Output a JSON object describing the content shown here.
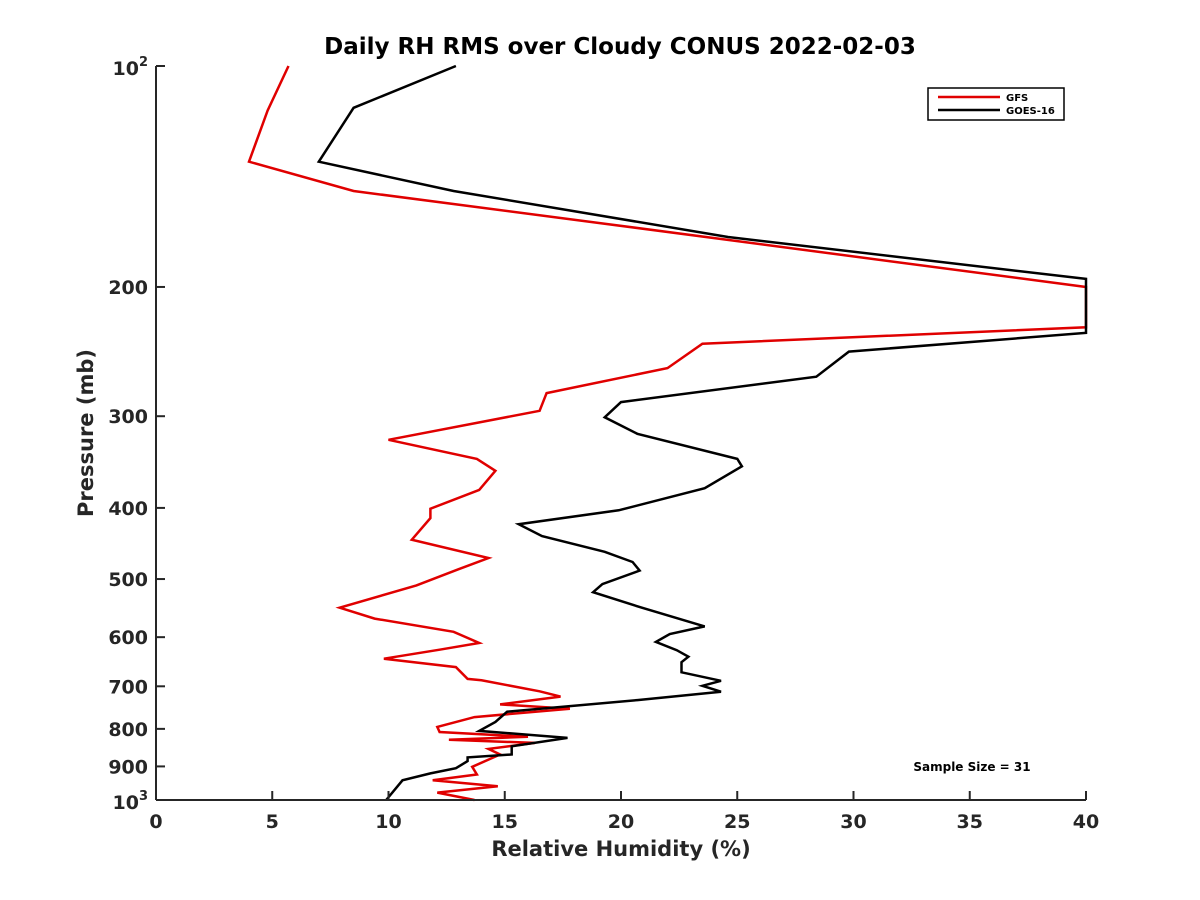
{
  "chart_data": {
    "type": "line",
    "title": "Daily RH RMS over Cloudy CONUS 2022-02-03",
    "xlabel": "Relative Humidity (%)",
    "ylabel": "Pressure (mb)",
    "xlim": [
      0,
      40
    ],
    "ylim": [
      100,
      1000
    ],
    "y_scale": "log",
    "y_reversed": true,
    "x_ticks": [
      "0",
      "5",
      "10",
      "15",
      "20",
      "25",
      "30",
      "35",
      "40"
    ],
    "y_ticks": [
      {
        "value": 100,
        "base": "10",
        "exp": "2"
      },
      {
        "value": 200,
        "label": "200"
      },
      {
        "value": 300,
        "label": "300"
      },
      {
        "value": 400,
        "label": "400"
      },
      {
        "value": 500,
        "label": "500"
      },
      {
        "value": 600,
        "label": "600"
      },
      {
        "value": 700,
        "label": "700"
      },
      {
        "value": 800,
        "label": "800"
      },
      {
        "value": 900,
        "label": "900"
      },
      {
        "value": 1000,
        "base": "10",
        "exp": "3"
      }
    ],
    "legend_position": "top-right",
    "grid": false,
    "annotation": "Sample Size = 31",
    "series": [
      {
        "name": "GFS",
        "color": "#e00000",
        "points": [
          [
            5.7,
            100
          ],
          [
            4.8,
            115
          ],
          [
            4.0,
            135
          ],
          [
            8.5,
            148
          ],
          [
            19.3,
            164
          ],
          [
            40,
            200
          ],
          [
            40,
            227
          ],
          [
            23.5,
            239
          ],
          [
            22,
            258
          ],
          [
            16.8,
            279
          ],
          [
            16.5,
            295
          ],
          [
            10,
            323
          ],
          [
            13.8,
            343
          ],
          [
            14.6,
            356
          ],
          [
            13.9,
            378
          ],
          [
            11.8,
            401
          ],
          [
            11.8,
            413
          ],
          [
            11,
            442
          ],
          [
            14.3,
            468
          ],
          [
            13,
            485
          ],
          [
            11.2,
            510
          ],
          [
            7.9,
            547
          ],
          [
            9.4,
            566
          ],
          [
            12.8,
            590
          ],
          [
            13.9,
            611
          ],
          [
            12.2,
            624
          ],
          [
            9.8,
            642
          ],
          [
            12.9,
            659
          ],
          [
            13.4,
            684
          ],
          [
            14,
            687
          ],
          [
            16.5,
            711
          ],
          [
            17.4,
            723
          ],
          [
            14.8,
            741
          ],
          [
            17.8,
            751
          ],
          [
            13.7,
            771
          ],
          [
            12.1,
            795
          ],
          [
            12.2,
            808
          ],
          [
            16,
            820
          ],
          [
            12.6,
            828
          ],
          [
            16.3,
            836
          ],
          [
            14.3,
            852
          ],
          [
            14.8,
            867
          ],
          [
            13.6,
            901
          ],
          [
            13.8,
            923
          ],
          [
            11.9,
            940
          ],
          [
            14.7,
            958
          ],
          [
            12.1,
            977
          ],
          [
            13.7,
            1000
          ]
        ]
      },
      {
        "name": "GOES-16",
        "color": "#000000",
        "points": [
          [
            12.9,
            100
          ],
          [
            8.5,
            114
          ],
          [
            7,
            135
          ],
          [
            12.8,
            148
          ],
          [
            24.6,
            171
          ],
          [
            40,
            195
          ],
          [
            40,
            231
          ],
          [
            29.8,
            245
          ],
          [
            28.4,
            265
          ],
          [
            20,
            287
          ],
          [
            19.3,
            301
          ],
          [
            20.7,
            317
          ],
          [
            25,
            343
          ],
          [
            25.2,
            351
          ],
          [
            23.6,
            376
          ],
          [
            19.9,
            403
          ],
          [
            15.6,
            421
          ],
          [
            16.6,
            437
          ],
          [
            19.3,
            459
          ],
          [
            20.5,
            474
          ],
          [
            20.8,
            487
          ],
          [
            19.2,
            508
          ],
          [
            18.8,
            521
          ],
          [
            20.9,
            547
          ],
          [
            23.6,
            580
          ],
          [
            22.1,
            594
          ],
          [
            21.5,
            609
          ],
          [
            22.4,
            625
          ],
          [
            22.9,
            638
          ],
          [
            22.6,
            649
          ],
          [
            22.6,
            670
          ],
          [
            24.3,
            688
          ],
          [
            23.5,
            699
          ],
          [
            24.3,
            712
          ],
          [
            20.7,
            731
          ],
          [
            15.1,
            758
          ],
          [
            14.6,
            783
          ],
          [
            13.9,
            805
          ],
          [
            17.7,
            823
          ],
          [
            15.3,
            845
          ],
          [
            15.3,
            867
          ],
          [
            13.4,
            875
          ],
          [
            13.4,
            885
          ],
          [
            12.9,
            905
          ],
          [
            11.8,
            920
          ],
          [
            10.6,
            940
          ],
          [
            9.9,
            1000
          ]
        ]
      }
    ]
  }
}
